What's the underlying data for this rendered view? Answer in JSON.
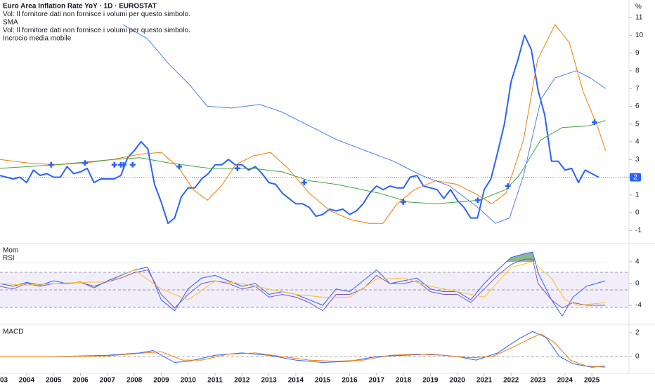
{
  "chart_data": [
    {
      "type": "line",
      "title": "Euro Area Inflation Rate YoY · 1D · EUROSTAT",
      "legend": [
        "Vol: Il fornitore dati non fornisce i volumi per questo simbolo.",
        "SMA",
        "Vol: Il fornitore dati non fornisce i volumi per questo simbolo.",
        "Incrocio media mobile"
      ],
      "y_unit": "%",
      "xlim": [
        2003.01,
        2026.38
      ],
      "ylim": [
        -1.66,
        11.99
      ],
      "yticks": [
        -1,
        0,
        1,
        2,
        3,
        4,
        5,
        6,
        7,
        8,
        9,
        10,
        11
      ],
      "series": [
        {
          "color": "#2962ff",
          "width": 2,
          "last_price_label": true,
          "x": [
            2003,
            2003.25,
            2003.5,
            2003.75,
            2004,
            2004.25,
            2004.5,
            2004.75,
            2005,
            2005.25,
            2005.5,
            2005.75,
            2006,
            2006.25,
            2006.5,
            2006.75,
            2007,
            2007.25,
            2007.5,
            2007.75,
            2008,
            2008.25,
            2008.5,
            2008.75,
            2009,
            2009.25,
            2009.5,
            2009.75,
            2010,
            2010.25,
            2010.5,
            2010.75,
            2011,
            2011.25,
            2011.5,
            2011.75,
            2012,
            2012.25,
            2012.5,
            2012.75,
            2013,
            2013.25,
            2013.5,
            2013.75,
            2014,
            2014.25,
            2014.5,
            2014.75,
            2015,
            2015.25,
            2015.5,
            2015.75,
            2016,
            2016.25,
            2016.5,
            2016.75,
            2017,
            2017.25,
            2017.5,
            2017.75,
            2018,
            2018.25,
            2018.5,
            2018.75,
            2019,
            2019.25,
            2019.5,
            2019.75,
            2020,
            2020.25,
            2020.5,
            2020.75,
            2021,
            2021.25,
            2021.5,
            2021.75,
            2022,
            2022.25,
            2022.5,
            2022.75,
            2023,
            2023.25,
            2023.5,
            2023.75,
            2024,
            2024.25,
            2024.5,
            2024.75,
            2025,
            2025.25
          ],
          "values": [
            2.1,
            2.0,
            1.9,
            2.0,
            1.7,
            2.4,
            2.1,
            2.2,
            2.0,
            2.0,
            2.6,
            2.2,
            2.3,
            2.5,
            1.7,
            1.9,
            1.9,
            1.9,
            2.1,
            3.1,
            3.5,
            4.0,
            3.6,
            1.6,
            0.6,
            -0.6,
            -0.3,
            0.9,
            1.4,
            1.4,
            1.9,
            2.2,
            2.7,
            2.7,
            3.0,
            2.7,
            2.7,
            2.4,
            2.6,
            2.2,
            1.7,
            1.6,
            1.1,
            0.8,
            0.5,
            0.5,
            0.3,
            -0.2,
            -0.1,
            0.2,
            0.1,
            0.2,
            -0.1,
            0.1,
            0.5,
            1.1,
            1.5,
            1.3,
            1.5,
            1.4,
            1.4,
            2.0,
            2.1,
            1.5,
            1.4,
            1.3,
            0.8,
            1.3,
            0.7,
            0.3,
            -0.3,
            -0.3,
            1.3,
            1.9,
            3.4,
            5.0,
            7.4,
            8.6,
            10.0,
            9.2,
            6.9,
            5.5,
            2.9,
            2.9,
            2.4,
            2.5,
            1.7,
            2.4,
            2.2,
            2.0
          ]
        },
        {
          "color": "#f57c00",
          "width": 1,
          "x": [
            2003.01,
            2004.05,
            2005.1,
            2006.14,
            2007.19,
            2008.23,
            2009.01,
            2009.67,
            2010.19,
            2010.71,
            2011.23,
            2011.76,
            2012.41,
            2013.06,
            2013.71,
            2014.5,
            2015.28,
            2016.06,
            2016.72,
            2017.24,
            2017.76,
            2018.41,
            2019.2,
            2019.98,
            2020.76,
            2021.28,
            2021.81,
            2022.46,
            2022.98,
            2023.63,
            2024.16,
            2024.68,
            2025.2,
            2025.51
          ],
          "values": [
            3.0,
            2.8,
            2.7,
            2.8,
            3.0,
            3.3,
            3.4,
            2.5,
            1.3,
            0.7,
            1.5,
            2.7,
            3.2,
            3.4,
            2.5,
            1.1,
            0.1,
            -0.4,
            -0.6,
            -0.6,
            0.5,
            1.3,
            1.8,
            1.6,
            1.0,
            0.5,
            1.1,
            4.1,
            8.6,
            10.6,
            9.6,
            6.8,
            4.9,
            3.5
          ]
        },
        {
          "color": "#43a047",
          "width": 1,
          "x": [
            2003.0,
            2005.1,
            2007.2,
            2008.2,
            2009.3,
            2010.8,
            2012.4,
            2013.5,
            2014.5,
            2015.5,
            2017.1,
            2018.2,
            2019.2,
            2020.8,
            2021.8,
            2022.3,
            2023.1,
            2023.9,
            2024.9,
            2025.5
          ],
          "values": [
            2.5,
            2.7,
            3.0,
            3.1,
            2.8,
            2.5,
            2.5,
            2.3,
            1.8,
            1.6,
            1.1,
            0.6,
            0.5,
            0.7,
            1.3,
            2.1,
            4.1,
            4.8,
            4.9,
            5.2
          ]
        },
        {
          "color": "#4f7fe8",
          "width": 1,
          "x": [
            2007.58,
            2008.49,
            2009.27,
            2010.06,
            2010.71,
            2011.62,
            2012.67,
            2013.45,
            2014.5,
            2015.54,
            2016.58,
            2017.63,
            2018.67,
            2019.72,
            2020.76,
            2021.42,
            2021.94,
            2022.46,
            2023.11,
            2023.63,
            2024.42,
            2024.94,
            2025.51
          ],
          "values": [
            10.6,
            9.8,
            8.4,
            7.2,
            6.0,
            5.9,
            6.1,
            5.7,
            4.9,
            4.1,
            3.5,
            2.9,
            2.1,
            1.5,
            0.3,
            -0.6,
            -0.3,
            2.1,
            6.4,
            7.6,
            8.0,
            7.6,
            7.0
          ]
        },
        {
          "color": "#2962ff",
          "marker": "cross",
          "x": [
            2004.91,
            2006.17,
            2007.26,
            2007.5,
            2007.6,
            2007.94,
            2009.67,
            2011.83,
            2014.31,
            2017.99,
            2020.76,
            2021.88,
            2025.1
          ],
          "values": [
            2.7,
            2.8,
            2.7,
            2.7,
            2.7,
            2.7,
            2.6,
            2.5,
            1.7,
            0.6,
            0.7,
            1.5,
            5.1
          ]
        }
      ]
    },
    {
      "type": "line",
      "xlim": [
        2003.01,
        2026.38
      ],
      "ylim": [
        -7.23,
        6.97
      ],
      "yticks": [
        -4,
        0,
        4
      ],
      "bands": [
        2.06,
        -1.16,
        -4.39
      ],
      "series": [
        {
          "name": "Mom",
          "color": "#2962ff",
          "fill_above": 4,
          "x": [
            2003,
            2003.5,
            2004,
            2004.5,
            2005,
            2005.5,
            2006,
            2006.5,
            2007,
            2007.5,
            2008,
            2008.5,
            2009,
            2009.5,
            2010,
            2010.5,
            2011,
            2011.5,
            2012,
            2012.5,
            2013,
            2013.5,
            2014,
            2014.5,
            2015,
            2015.5,
            2016,
            2016.5,
            2017,
            2017.5,
            2018,
            2018.5,
            2019,
            2019.5,
            2020,
            2020.5,
            2021,
            2021.5,
            2022,
            2022.5,
            2022.8,
            2023,
            2023.5,
            2023.9,
            2024.3,
            2024.8,
            2025.5
          ],
          "values": [
            0,
            -0.5,
            0.2,
            -0.3,
            0.5,
            0,
            0.3,
            -0.8,
            0.5,
            1.5,
            2.5,
            3,
            -3,
            -5,
            -1,
            1,
            1.5,
            0.5,
            -0.5,
            0,
            -2,
            -1.5,
            -2,
            -3,
            -4,
            -1,
            -1.5,
            0.5,
            2.5,
            0,
            0.5,
            1,
            -1,
            -1.5,
            -1.5,
            -3,
            0,
            2.5,
            4.8,
            5.5,
            5.8,
            2,
            -3,
            -6,
            -2.5,
            -0.5,
            0.5
          ]
        },
        {
          "name": "RSI",
          "color": "#7e57c2",
          "x": [
            2003,
            2003.5,
            2004,
            2004.5,
            2005,
            2005.5,
            2006,
            2006.5,
            2007,
            2007.5,
            2008,
            2008.5,
            2009,
            2009.5,
            2010,
            2010.5,
            2011,
            2011.5,
            2012,
            2012.5,
            2013,
            2013.5,
            2014,
            2014.5,
            2015,
            2015.5,
            2016,
            2016.5,
            2017,
            2017.5,
            2018,
            2018.5,
            2019,
            2019.5,
            2020,
            2020.5,
            2021,
            2021.5,
            2022,
            2022.5,
            2022.8,
            2023,
            2023.5,
            2023.9,
            2024.3,
            2024.8,
            2025.5
          ],
          "values": [
            -0.5,
            -1,
            0,
            -0.5,
            0,
            0,
            0.2,
            -0.5,
            0.3,
            1,
            2,
            2.5,
            -2,
            -4.5,
            -2,
            0,
            0.5,
            0,
            -1,
            -0.5,
            -2.5,
            -2,
            -2.5,
            -3.5,
            -5,
            -2,
            -2,
            -1,
            1.5,
            0,
            0,
            0.5,
            -1.5,
            -2,
            -2,
            -3.5,
            -1,
            1.5,
            3.5,
            4.5,
            4.5,
            0,
            -3,
            -4.5,
            -3.5,
            -4,
            -4
          ]
        },
        {
          "color": "#fbc02d",
          "x": [
            2003,
            2004,
            2005,
            2006,
            2007,
            2008,
            2009,
            2010,
            2011,
            2012,
            2013,
            2014,
            2015,
            2016,
            2017,
            2018,
            2019,
            2020,
            2021,
            2022,
            2022.8,
            2023.5,
            2024,
            2024.5,
            2025.5
          ],
          "values": [
            0,
            -0.3,
            0,
            0.2,
            0.3,
            2.5,
            -1,
            -3,
            0.5,
            0,
            -1,
            -2,
            -2.5,
            -2.5,
            0.8,
            1,
            -0.5,
            -1.5,
            -2.5,
            3,
            4,
            1,
            -3,
            -4,
            -3.5
          ]
        }
      ]
    },
    {
      "type": "line",
      "title": "MACD",
      "xlim": [
        2003.01,
        2026.38
      ],
      "ylim": [
        -1.18,
        2.53
      ],
      "yticks": [
        0,
        2
      ],
      "zero_line": 0,
      "xticks": [
        {
          "value": 2003,
          "label": "03"
        },
        2004,
        2005,
        2006,
        2007,
        2008,
        2009,
        2010,
        2011,
        2012,
        2013,
        2014,
        2015,
        2016,
        2017,
        2018,
        2019,
        2020,
        2021,
        2022,
        2023,
        2024,
        2025
      ],
      "series": [
        {
          "color": "#2962ff",
          "x": [
            2003,
            2005,
            2007,
            2008.2,
            2008.7,
            2009.5,
            2010,
            2011,
            2012,
            2013,
            2014,
            2015,
            2016,
            2017,
            2018,
            2019,
            2020,
            2020.7,
            2021.5,
            2022.3,
            2022.8,
            2023.3,
            2023.8,
            2024.3,
            2025,
            2025.5
          ],
          "values": [
            0,
            0,
            0.1,
            0.3,
            0.5,
            -0.5,
            -0.4,
            0.1,
            0.3,
            0.1,
            -0.3,
            -0.5,
            -0.4,
            0,
            0.1,
            0.2,
            0,
            -0.3,
            0.3,
            1.5,
            2.1,
            1.6,
            0,
            -0.6,
            -0.9,
            -0.8
          ]
        },
        {
          "color": "#f57c00",
          "x": [
            2003,
            2005,
            2007,
            2008.4,
            2009,
            2009.8,
            2010.5,
            2011.5,
            2012.5,
            2013.5,
            2014.5,
            2015.5,
            2016.5,
            2017.5,
            2018.5,
            2019.5,
            2020.5,
            2021.3,
            2022,
            2022.7,
            2023.1,
            2023.6,
            2024.2,
            2024.8,
            2025.5
          ],
          "values": [
            0,
            0,
            0.05,
            0.3,
            0.4,
            -0.3,
            -0.3,
            0.2,
            0.3,
            0,
            -0.3,
            -0.4,
            -0.3,
            0.1,
            0.2,
            0.1,
            -0.1,
            0,
            0.7,
            1.5,
            1.9,
            1.2,
            -0.3,
            -0.8,
            -0.9
          ]
        }
      ]
    }
  ]
}
